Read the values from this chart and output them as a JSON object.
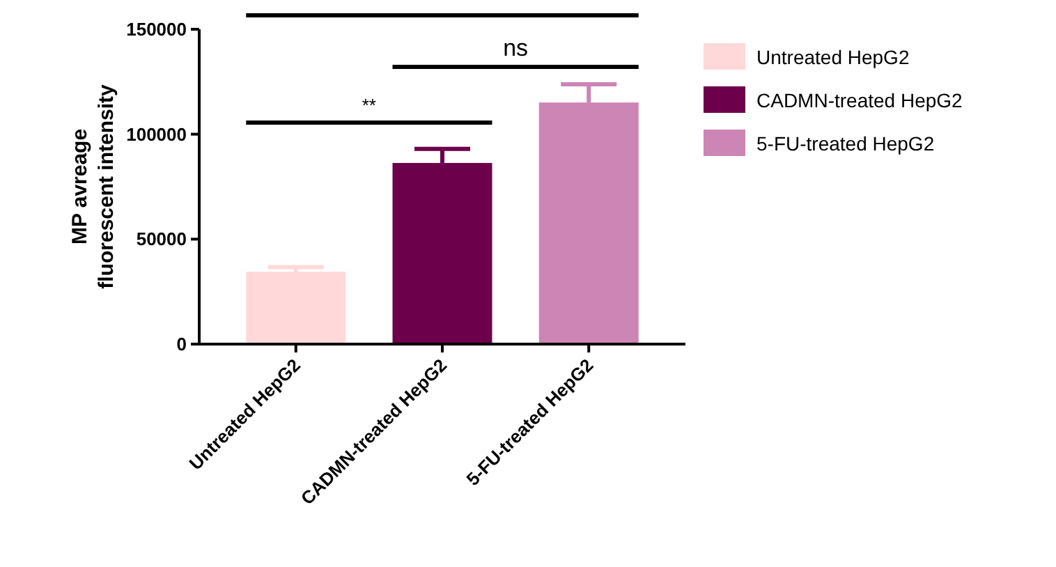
{
  "chart_data": {
    "type": "bar",
    "ylabel": "MP avreage\nfluorescent intensity",
    "categories": [
      "Untreated HepG2",
      "CADMN-treated HepG2",
      "5-FU-treated HepG2"
    ],
    "series": [
      {
        "name": "Untreated HepG2",
        "color": "#ffd9d9",
        "values": [
          34500,
          null,
          null
        ],
        "errors": [
          [
            34500,
            36700
          ],
          null,
          null
        ]
      },
      {
        "name": "CADMN-treated HepG2",
        "color": "#6c004a",
        "values": [
          null,
          86300,
          null
        ],
        "errors": [
          null,
          [
            86300,
            93000
          ],
          null
        ]
      },
      {
        "name": "5-FU-treated HepG2",
        "color": "#cc85b4",
        "values": [
          null,
          null,
          115100
        ],
        "errors": [
          null,
          null,
          [
            115100,
            123800
          ]
        ]
      }
    ],
    "ylim": [
      0,
      150000
    ],
    "yticks": [
      0,
      50000,
      100000,
      150000
    ],
    "grid": false,
    "legend": "right",
    "annotations": [
      "**",
      "ns"
    ]
  }
}
